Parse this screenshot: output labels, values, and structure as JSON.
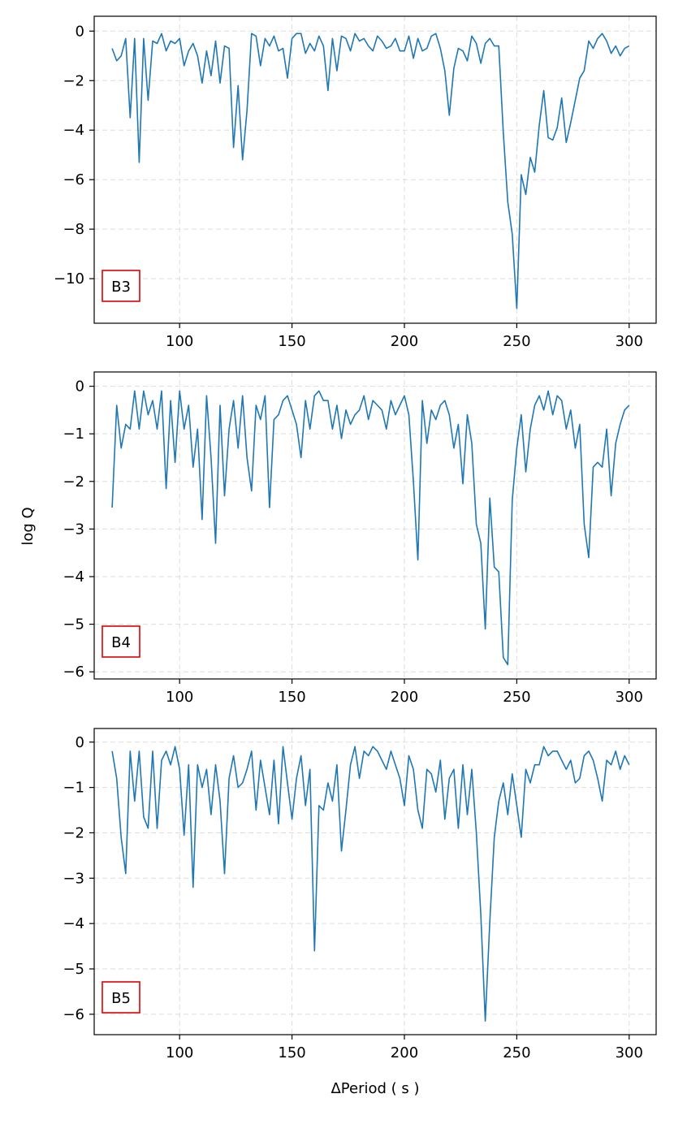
{
  "figure": {
    "ylabel": "log Q",
    "xlabel": "ΔPeriod ( s )",
    "line_color": "#1f77b4",
    "box_color": "#e00000"
  },
  "chart_data": [
    {
      "type": "line",
      "panel_label": "B3",
      "xlim": [
        62,
        312
      ],
      "ylim": [
        -11.8,
        0.6
      ],
      "xticks": [
        100,
        150,
        200,
        250,
        300
      ],
      "yticks": [
        0,
        -2,
        -4,
        -6,
        -8,
        -10
      ],
      "ytick_labels": [
        "0",
        "−2",
        "−4",
        "−6",
        "−8",
        "−10"
      ],
      "grid": true,
      "x": [
        70,
        72,
        74,
        76,
        78,
        80,
        82,
        84,
        86,
        88,
        90,
        92,
        94,
        96,
        98,
        100,
        102,
        104,
        106,
        108,
        110,
        112,
        114,
        116,
        118,
        120,
        122,
        124,
        126,
        128,
        130,
        132,
        134,
        136,
        138,
        140,
        142,
        144,
        146,
        148,
        150,
        152,
        154,
        156,
        158,
        160,
        162,
        164,
        166,
        168,
        170,
        172,
        174,
        176,
        178,
        180,
        182,
        184,
        186,
        188,
        190,
        192,
        194,
        196,
        198,
        200,
        202,
        204,
        206,
        208,
        210,
        212,
        214,
        216,
        218,
        220,
        222,
        224,
        226,
        228,
        230,
        232,
        234,
        236,
        238,
        240,
        242,
        244,
        246,
        248,
        250,
        252,
        254,
        256,
        258,
        260,
        262,
        264,
        266,
        268,
        270,
        272,
        274,
        276,
        278,
        280,
        282,
        284,
        286,
        288,
        290,
        292,
        294,
        296,
        298,
        300
      ],
      "y": [
        -0.7,
        -1.2,
        -1.0,
        -0.3,
        -3.5,
        -0.3,
        -5.3,
        -0.3,
        -2.8,
        -0.4,
        -0.5,
        -0.1,
        -0.8,
        -0.4,
        -0.5,
        -0.3,
        -1.4,
        -0.8,
        -0.5,
        -1.0,
        -2.1,
        -0.8,
        -1.8,
        -0.4,
        -2.1,
        -0.6,
        -0.7,
        -4.7,
        -2.2,
        -5.2,
        -3.2,
        -0.1,
        -0.2,
        -1.4,
        -0.3,
        -0.6,
        -0.2,
        -0.8,
        -0.7,
        -1.9,
        -0.3,
        -0.1,
        -0.1,
        -0.9,
        -0.5,
        -0.8,
        -0.2,
        -0.6,
        -2.4,
        -0.3,
        -1.6,
        -0.2,
        -0.3,
        -0.8,
        -0.1,
        -0.4,
        -0.3,
        -0.6,
        -0.8,
        -0.2,
        -0.4,
        -0.7,
        -0.6,
        -0.3,
        -0.8,
        -0.8,
        -0.2,
        -1.1,
        -0.3,
        -0.8,
        -0.7,
        -0.2,
        -0.1,
        -0.7,
        -1.6,
        -3.4,
        -1.5,
        -0.7,
        -0.8,
        -1.2,
        -0.2,
        -0.5,
        -1.3,
        -0.5,
        -0.3,
        -0.6,
        -0.6,
        -4.1,
        -6.9,
        -8.2,
        -11.2,
        -5.8,
        -6.6,
        -5.1,
        -5.7,
        -3.8,
        -2.4,
        -4.3,
        -4.4,
        -3.9,
        -2.7,
        -4.5,
        -3.7,
        -2.8,
        -1.9,
        -1.6,
        -0.4,
        -0.7,
        -0.3,
        -0.1,
        -0.4,
        -0.9,
        -0.6,
        -1.0,
        -0.7,
        -0.6
      ],
      "xticks_labels": [
        "100",
        "150",
        "200",
        "250",
        "300"
      ]
    },
    {
      "type": "line",
      "panel_label": "B4",
      "xlim": [
        62,
        312
      ],
      "ylim": [
        -6.15,
        0.3
      ],
      "xticks": [
        100,
        150,
        200,
        250,
        300
      ],
      "yticks": [
        0,
        -1,
        -2,
        -3,
        -4,
        -5,
        -6
      ],
      "ytick_labels": [
        "0",
        "−1",
        "−2",
        "−3",
        "−4",
        "−5",
        "−6"
      ],
      "grid": true,
      "x": [
        70,
        72,
        74,
        76,
        78,
        80,
        82,
        84,
        86,
        88,
        90,
        92,
        94,
        96,
        98,
        100,
        102,
        104,
        106,
        108,
        110,
        112,
        114,
        116,
        118,
        120,
        122,
        124,
        126,
        128,
        130,
        132,
        134,
        136,
        138,
        140,
        142,
        144,
        146,
        148,
        150,
        152,
        154,
        156,
        158,
        160,
        162,
        164,
        166,
        168,
        170,
        172,
        174,
        176,
        178,
        180,
        182,
        184,
        186,
        188,
        190,
        192,
        194,
        196,
        198,
        200,
        202,
        204,
        206,
        208,
        210,
        212,
        214,
        216,
        218,
        220,
        222,
        224,
        226,
        228,
        230,
        232,
        234,
        236,
        238,
        240,
        242,
        244,
        246,
        248,
        250,
        252,
        254,
        256,
        258,
        260,
        262,
        264,
        266,
        268,
        270,
        272,
        274,
        276,
        278,
        280,
        282,
        284,
        286,
        288,
        290,
        292,
        294,
        296,
        298,
        300
      ],
      "y": [
        -2.55,
        -0.4,
        -1.3,
        -0.8,
        -0.9,
        -0.1,
        -0.9,
        -0.1,
        -0.6,
        -0.3,
        -0.9,
        -0.1,
        -2.15,
        -0.3,
        -1.6,
        -0.1,
        -0.9,
        -0.4,
        -1.7,
        -0.9,
        -2.8,
        -0.2,
        -1.5,
        -3.3,
        -0.4,
        -2.3,
        -0.9,
        -0.3,
        -1.3,
        -0.2,
        -1.5,
        -2.2,
        -0.4,
        -0.7,
        -0.2,
        -2.55,
        -0.7,
        -0.6,
        -0.3,
        -0.2,
        -0.5,
        -0.8,
        -1.5,
        -0.3,
        -0.9,
        -0.2,
        -0.1,
        -0.3,
        -0.3,
        -0.9,
        -0.4,
        -1.1,
        -0.5,
        -0.8,
        -0.6,
        -0.5,
        -0.2,
        -0.7,
        -0.3,
        -0.4,
        -0.5,
        -0.9,
        -0.3,
        -0.6,
        -0.4,
        -0.2,
        -0.6,
        -2.0,
        -3.65,
        -0.3,
        -1.2,
        -0.5,
        -0.7,
        -0.4,
        -0.3,
        -0.6,
        -1.3,
        -0.8,
        -2.05,
        -0.6,
        -1.2,
        -2.9,
        -3.3,
        -5.1,
        -2.35,
        -3.8,
        -3.9,
        -5.7,
        -5.85,
        -2.4,
        -1.3,
        -0.6,
        -1.8,
        -0.9,
        -0.4,
        -0.2,
        -0.5,
        -0.1,
        -0.6,
        -0.2,
        -0.3,
        -0.9,
        -0.5,
        -1.3,
        -0.8,
        -2.9,
        -3.6,
        -1.7,
        -1.6,
        -1.7,
        -0.9,
        -2.3,
        -1.2,
        -0.8,
        -0.5,
        -0.4
      ],
      "xticks_labels": [
        "100",
        "150",
        "200",
        "250",
        "300"
      ]
    },
    {
      "type": "line",
      "panel_label": "B5",
      "xlim": [
        62,
        312
      ],
      "ylim": [
        -6.45,
        0.3
      ],
      "xticks": [
        100,
        150,
        200,
        250,
        300
      ],
      "yticks": [
        0,
        -1,
        -2,
        -3,
        -4,
        -5,
        -6
      ],
      "ytick_labels": [
        "0",
        "−1",
        "−2",
        "−3",
        "−4",
        "−5",
        "−6"
      ],
      "grid": true,
      "x": [
        70,
        72,
        74,
        76,
        78,
        80,
        82,
        84,
        86,
        88,
        90,
        92,
        94,
        96,
        98,
        100,
        102,
        104,
        106,
        108,
        110,
        112,
        114,
        116,
        118,
        120,
        122,
        124,
        126,
        128,
        130,
        132,
        134,
        136,
        138,
        140,
        142,
        144,
        146,
        148,
        150,
        152,
        154,
        156,
        158,
        160,
        162,
        164,
        166,
        168,
        170,
        172,
        174,
        176,
        178,
        180,
        182,
        184,
        186,
        188,
        190,
        192,
        194,
        196,
        198,
        200,
        202,
        204,
        206,
        208,
        210,
        212,
        214,
        216,
        218,
        220,
        222,
        224,
        226,
        228,
        230,
        232,
        234,
        236,
        238,
        240,
        242,
        244,
        246,
        248,
        250,
        252,
        254,
        256,
        258,
        260,
        262,
        264,
        266,
        268,
        270,
        272,
        274,
        276,
        278,
        280,
        282,
        284,
        286,
        288,
        290,
        292,
        294,
        296,
        298,
        300
      ],
      "y": [
        -0.2,
        -0.8,
        -2.1,
        -2.9,
        -0.2,
        -1.3,
        -0.2,
        -1.65,
        -1.9,
        -0.2,
        -1.9,
        -0.4,
        -0.2,
        -0.5,
        -0.1,
        -0.6,
        -2.05,
        -0.5,
        -3.2,
        -0.5,
        -1.0,
        -0.6,
        -1.6,
        -0.5,
        -1.3,
        -2.9,
        -0.8,
        -0.3,
        -1.0,
        -0.9,
        -0.6,
        -0.2,
        -1.5,
        -0.4,
        -1.0,
        -1.6,
        -0.4,
        -1.8,
        -0.1,
        -0.9,
        -1.7,
        -0.8,
        -0.3,
        -1.4,
        -0.6,
        -4.6,
        -1.4,
        -1.5,
        -0.9,
        -1.3,
        -0.5,
        -2.4,
        -1.5,
        -0.5,
        -0.1,
        -0.8,
        -0.2,
        -0.3,
        -0.1,
        -0.2,
        -0.4,
        -0.6,
        -0.2,
        -0.5,
        -0.8,
        -1.4,
        -0.3,
        -0.6,
        -1.5,
        -1.9,
        -0.6,
        -0.7,
        -1.1,
        -0.4,
        -1.7,
        -0.8,
        -0.6,
        -1.9,
        -0.5,
        -1.6,
        -0.6,
        -2.0,
        -3.8,
        -6.15,
        -3.95,
        -2.1,
        -1.3,
        -0.9,
        -1.6,
        -0.7,
        -1.4,
        -2.1,
        -0.6,
        -0.9,
        -0.5,
        -0.5,
        -0.1,
        -0.3,
        -0.2,
        -0.2,
        -0.4,
        -0.6,
        -0.4,
        -0.9,
        -0.8,
        -0.3,
        -0.2,
        -0.4,
        -0.8,
        -1.3,
        -0.4,
        -0.5,
        -0.2,
        -0.6,
        -0.3,
        -0.5
      ],
      "xticks_labels": [
        "100",
        "150",
        "200",
        "250",
        "300"
      ]
    }
  ]
}
